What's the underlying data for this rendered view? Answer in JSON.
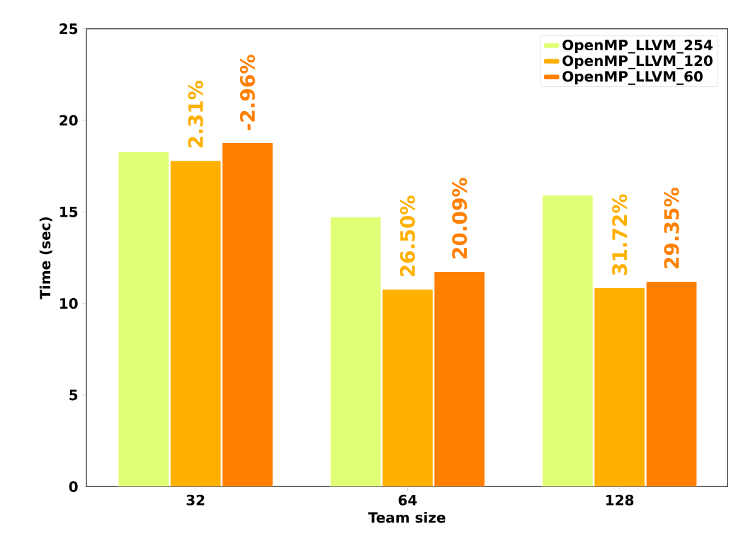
{
  "chart_data": {
    "type": "bar",
    "xlabel": "Team size",
    "ylabel": "Time (sec)",
    "categories": [
      "32",
      "64",
      "128"
    ],
    "series": [
      {
        "name": "OpenMP_LLVM_254",
        "color": "#e0ff77",
        "values": [
          18.28,
          14.72,
          15.92
        ]
      },
      {
        "name": "OpenMP_LLVM_120",
        "color": "#ffb000",
        "values": [
          17.81,
          10.78,
          10.86
        ]
      },
      {
        "name": "OpenMP_LLVM_60",
        "color": "#ff8000",
        "values": [
          18.78,
          11.75,
          11.21
        ]
      }
    ],
    "annotations": [
      "2.31%",
      "26.50%",
      "31.72%",
      "-2.96%",
      "20.09%",
      "29.35%"
    ],
    "ylim": [
      0,
      25
    ],
    "yticks": [
      0,
      5,
      10,
      15,
      20,
      25
    ],
    "grid": false,
    "legend": "top right"
  }
}
